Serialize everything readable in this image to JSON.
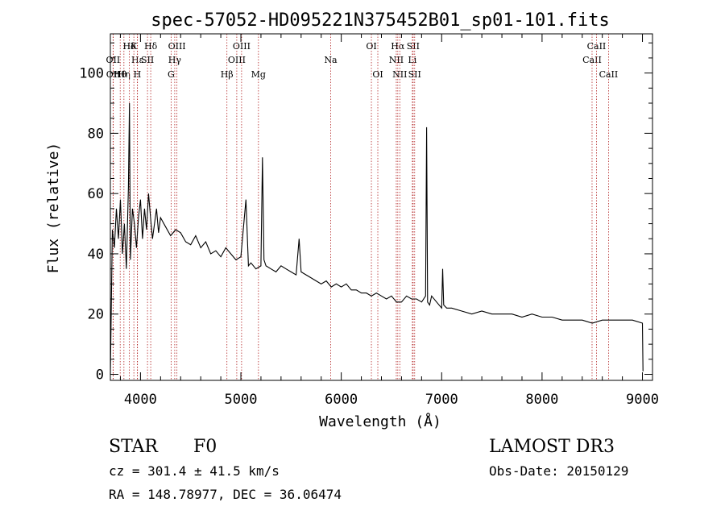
{
  "chart_data": {
    "type": "line",
    "title": "spec-57052-HD095221N375452B01_sp01-101.fits",
    "xlabel": "Wavelength (Å)",
    "ylabel": "Flux (relative)",
    "xlim": [
      3700,
      9100
    ],
    "ylim": [
      -2,
      113
    ],
    "xticks": [
      4000,
      5000,
      6000,
      7000,
      8000,
      9000
    ],
    "yticks": [
      0,
      20,
      40,
      60,
      80,
      100
    ],
    "grid": false,
    "lines": [
      {
        "label": "OII",
        "wavelength": 3727,
        "row": 1
      },
      {
        "label": "OII",
        "wavelength": 3729,
        "row": 2
      },
      {
        "label": "Hθ",
        "wavelength": 3798,
        "row": 2
      },
      {
        "label": "Hη",
        "wavelength": 3835,
        "row": 2
      },
      {
        "label": "Hδ",
        "wavelength": 3889,
        "row": 0
      },
      {
        "label": "Hε",
        "wavelength": 3970,
        "row": 1
      },
      {
        "label": "K",
        "wavelength": 3934,
        "row": 0
      },
      {
        "label": "H",
        "wavelength": 3968,
        "row": 2
      },
      {
        "label": "SII",
        "wavelength": 4070,
        "row": 1
      },
      {
        "label": "Hδ",
        "wavelength": 4102,
        "row": 0
      },
      {
        "label": "G",
        "wavelength": 4305,
        "row": 2
      },
      {
        "label": "Hγ",
        "wavelength": 4341,
        "row": 1
      },
      {
        "label": "OIII",
        "wavelength": 4363,
        "row": 0
      },
      {
        "label": "Hβ",
        "wavelength": 4861,
        "row": 2
      },
      {
        "label": "OIII",
        "wavelength": 4959,
        "row": 1
      },
      {
        "label": "OIII",
        "wavelength": 5007,
        "row": 0
      },
      {
        "label": "Mg",
        "wavelength": 5175,
        "row": 2
      },
      {
        "label": "Na",
        "wavelength": 5894,
        "row": 1
      },
      {
        "label": "OI",
        "wavelength": 6300,
        "row": 0
      },
      {
        "label": "OI",
        "wavelength": 6364,
        "row": 2
      },
      {
        "label": "NII",
        "wavelength": 6548,
        "row": 1
      },
      {
        "label": "Hα",
        "wavelength": 6563,
        "row": 0
      },
      {
        "label": "NII",
        "wavelength": 6583,
        "row": 2
      },
      {
        "label": "Li",
        "wavelength": 6708,
        "row": 1
      },
      {
        "label": "SII",
        "wavelength": 6716,
        "row": 0
      },
      {
        "label": "SII",
        "wavelength": 6731,
        "row": 2
      },
      {
        "label": "CaII",
        "wavelength": 8498,
        "row": 1
      },
      {
        "label": "CaII",
        "wavelength": 8542,
        "row": 0
      },
      {
        "label": "CaII",
        "wavelength": 8662,
        "row": 2
      }
    ],
    "series": [
      {
        "name": "flux",
        "x": [
          3700,
          3720,
          3740,
          3760,
          3780,
          3800,
          3820,
          3840,
          3860,
          3880,
          3890,
          3900,
          3920,
          3940,
          3960,
          3980,
          4000,
          4020,
          4040,
          4060,
          4080,
          4100,
          4120,
          4140,
          4160,
          4180,
          4200,
          4250,
          4300,
          4350,
          4400,
          4450,
          4500,
          4550,
          4600,
          4650,
          4700,
          4750,
          4800,
          4850,
          4900,
          4950,
          5000,
          5050,
          5075,
          5100,
          5150,
          5200,
          5215,
          5230,
          5250,
          5300,
          5350,
          5400,
          5450,
          5500,
          5550,
          5580,
          5600,
          5650,
          5700,
          5750,
          5800,
          5850,
          5900,
          5950,
          6000,
          6050,
          6100,
          6150,
          6200,
          6250,
          6300,
          6350,
          6400,
          6450,
          6500,
          6550,
          6600,
          6650,
          6700,
          6750,
          6800,
          6840,
          6850,
          6860,
          6880,
          6900,
          6950,
          7000,
          7010,
          7020,
          7050,
          7100,
          7200,
          7300,
          7400,
          7500,
          7600,
          7700,
          7800,
          7900,
          8000,
          8100,
          8200,
          8300,
          8400,
          8500,
          8600,
          8700,
          8800,
          8900,
          9000,
          9005
        ],
        "y": [
          0,
          48,
          42,
          55,
          45,
          58,
          40,
          50,
          35,
          62,
          90,
          38,
          55,
          50,
          42,
          52,
          58,
          45,
          55,
          48,
          60,
          52,
          45,
          50,
          55,
          47,
          52,
          49,
          46,
          48,
          47,
          44,
          43,
          46,
          42,
          44,
          40,
          41,
          39,
          42,
          40,
          38,
          39,
          58,
          36,
          37,
          35,
          36,
          72,
          38,
          36,
          35,
          34,
          36,
          35,
          34,
          33,
          45,
          34,
          33,
          32,
          31,
          30,
          31,
          29,
          30,
          29,
          30,
          28,
          28,
          27,
          27,
          26,
          27,
          26,
          25,
          26,
          24,
          24,
          26,
          25,
          25,
          24,
          26,
          82,
          24,
          23,
          26,
          24,
          22,
          35,
          23,
          22,
          22,
          21,
          20,
          21,
          20,
          20,
          20,
          19,
          20,
          19,
          19,
          18,
          18,
          18,
          17,
          18,
          18,
          18,
          18,
          17,
          1
        ]
      }
    ]
  },
  "footer": {
    "object_type": "STAR",
    "spectral_class": "F0",
    "survey": "LAMOST DR3",
    "cz": "cz = 301.4 ± 41.5 km/s",
    "obs_date": "Obs-Date: 20150129",
    "coords": "RA = 148.78977, DEC =  36.06474"
  }
}
